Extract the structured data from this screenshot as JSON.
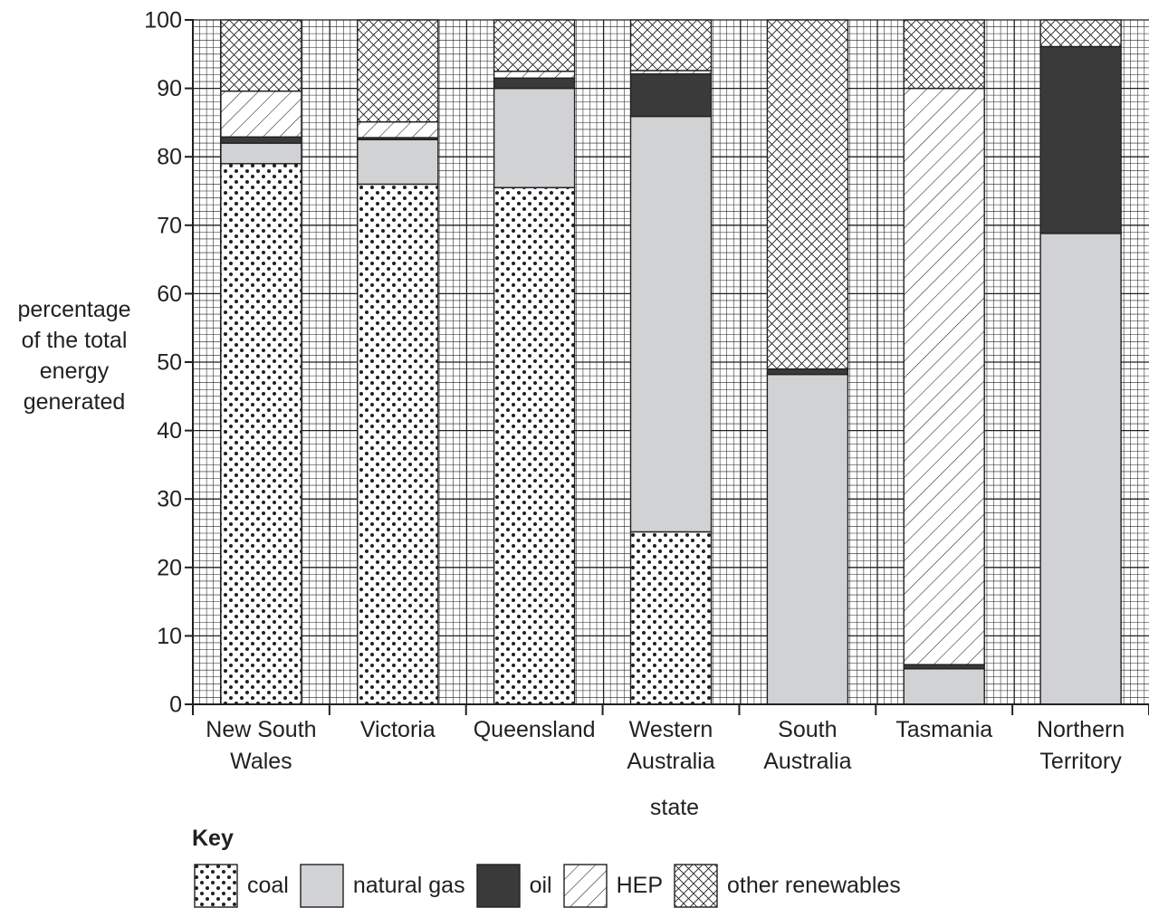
{
  "chart_data": {
    "type": "bar",
    "stacked": true,
    "ylabel": [
      "percentage",
      "of the total",
      "energy",
      "generated"
    ],
    "xlabel": "state",
    "ylim": [
      0,
      100
    ],
    "yticks": [
      "0",
      "10",
      "20",
      "30",
      "40",
      "50",
      "60",
      "70",
      "80",
      "90",
      "100"
    ],
    "grid": true,
    "categories": [
      [
        "New South",
        "Wales"
      ],
      [
        "Victoria"
      ],
      [
        "Queensland"
      ],
      [
        "Western",
        "Australia"
      ],
      [
        "South",
        "Australia"
      ],
      [
        "Tasmania"
      ],
      [
        "Northern",
        "Territory"
      ]
    ],
    "series": [
      {
        "name": "coal",
        "pattern": "dots",
        "values": [
          79,
          76,
          75.5,
          25.2,
          0,
          0,
          0
        ]
      },
      {
        "name": "natural gas",
        "pattern": "light-grey",
        "values": [
          3,
          6.5,
          14.5,
          60.7,
          48.2,
          5.2,
          68.8
        ]
      },
      {
        "name": "oil",
        "pattern": "dark-grey",
        "values": [
          0.9,
          0.3,
          1.5,
          6.2,
          0.8,
          0.6,
          27.3
        ]
      },
      {
        "name": "HEP",
        "pattern": "diagonal",
        "values": [
          6.7,
          2.3,
          1,
          0.5,
          0,
          84.2,
          0
        ]
      },
      {
        "name": "other renewables",
        "pattern": "crosshatch",
        "values": [
          10.4,
          14.9,
          7.5,
          7.4,
          51,
          10,
          3.9
        ]
      }
    ],
    "key_title": "Key",
    "colors": {
      "light_grey": "#d1d2d4",
      "dark_grey": "#3a3a3a",
      "ink": "#231f20"
    }
  }
}
